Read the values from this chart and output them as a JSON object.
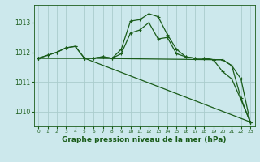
{
  "background_color": "#cce8ec",
  "grid_color": "#aacccc",
  "line_color": "#1a5c1a",
  "xlabel": "Graphe pression niveau de la mer (hPa)",
  "xlabel_fontsize": 6.5,
  "ylim": [
    1009.5,
    1013.6
  ],
  "xlim": [
    -0.5,
    23.5
  ],
  "yticks": [
    1010,
    1011,
    1012,
    1013
  ],
  "xticks": [
    0,
    1,
    2,
    3,
    4,
    5,
    6,
    7,
    8,
    9,
    10,
    11,
    12,
    13,
    14,
    15,
    16,
    17,
    18,
    19,
    20,
    21,
    22,
    23
  ],
  "series1_x": [
    0,
    1,
    2,
    3,
    4,
    5,
    6,
    7,
    8,
    9,
    10,
    11,
    12,
    13,
    14,
    15,
    16,
    17,
    18,
    19,
    20,
    21,
    22,
    23
  ],
  "series1_y": [
    1011.8,
    1011.9,
    1012.0,
    1012.15,
    1012.2,
    1011.8,
    1011.8,
    1011.85,
    1011.8,
    1012.1,
    1013.05,
    1013.1,
    1013.3,
    1013.2,
    1012.6,
    1012.1,
    1011.85,
    1011.8,
    1011.8,
    1011.75,
    1011.75,
    1011.55,
    1011.1,
    1009.65
  ],
  "series2_x": [
    0,
    1,
    2,
    3,
    4,
    5,
    6,
    7,
    8,
    9,
    10,
    11,
    12,
    13,
    14,
    15,
    16,
    17,
    18,
    19,
    20,
    21,
    22,
    23
  ],
  "series2_y": [
    1011.8,
    1011.9,
    1012.0,
    1012.15,
    1012.2,
    1011.8,
    1011.8,
    1011.85,
    1011.8,
    1011.95,
    1012.65,
    1012.75,
    1013.0,
    1012.45,
    1012.5,
    1011.95,
    1011.85,
    1011.8,
    1011.8,
    1011.75,
    1011.75,
    1011.55,
    1010.45,
    1009.65
  ],
  "series3_x": [
    0,
    5,
    23
  ],
  "series3_y": [
    1011.8,
    1011.8,
    1009.65
  ],
  "series4_x": [
    0,
    5,
    19,
    20,
    21,
    22,
    23
  ],
  "series4_y": [
    1011.8,
    1011.8,
    1011.75,
    1011.35,
    1011.1,
    1010.4,
    1009.65
  ]
}
